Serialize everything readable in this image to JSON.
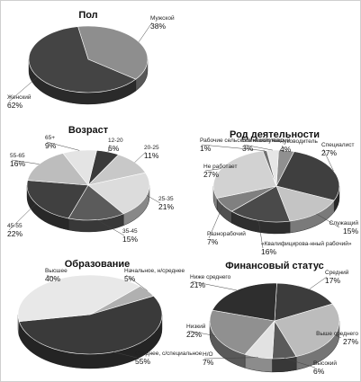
{
  "chart_data": [
    {
      "type": "pie",
      "title": "Пол",
      "slices": [
        {
          "label": "Мужской",
          "pct_text": "38%",
          "value": 38,
          "color": "#8e8e8e"
        },
        {
          "label": "Женский",
          "pct_text": "62%",
          "value": 62,
          "color": "#444444"
        }
      ]
    },
    {
      "type": "pie",
      "title": "Возраст",
      "slices": [
        {
          "label": "12-20",
          "pct_text": "6%",
          "value": 6,
          "color": "#3a3a3a"
        },
        {
          "label": "20-25",
          "pct_text": "11%",
          "value": 11,
          "color": "#c8c8c8"
        },
        {
          "label": "25-35",
          "pct_text": "21%",
          "value": 21,
          "color": "#dcdcdc"
        },
        {
          "label": "35-45",
          "pct_text": "15%",
          "value": 15,
          "color": "#5b5b5b"
        },
        {
          "label": "45-55",
          "pct_text": "22%",
          "value": 22,
          "color": "#404040"
        },
        {
          "label": "55-65",
          "pct_text": "16%",
          "value": 16,
          "color": "#bdbdbd"
        },
        {
          "label": "65+",
          "pct_text": "9%",
          "value": 9,
          "color": "#e4e4e4"
        }
      ]
    },
    {
      "type": "pie",
      "title": "Род деятельности",
      "slices": [
        {
          "label": "Руководитель",
          "pct_text": "4%",
          "value": 4,
          "color": "#909090"
        },
        {
          "label": "Специалист",
          "pct_text": "27%",
          "value": 27,
          "color": "#3f3f3f"
        },
        {
          "label": "Служащий",
          "pct_text": "15%",
          "value": 15,
          "color": "#c4c4c4"
        },
        {
          "label": "«Квалифицирова-нный рабочий»",
          "pct_text": "16%",
          "value": 16,
          "color": "#4a4a4a"
        },
        {
          "label": "Разнорабочий",
          "pct_text": "7%",
          "value": 7,
          "color": "#808080"
        },
        {
          "label": "Не работает",
          "pct_text": "27%",
          "value": 27,
          "color": "#d2d2d2"
        },
        {
          "label": "Рабочие сельского хозяйства",
          "pct_text": "1%",
          "value": 1,
          "color": "#707070"
        },
        {
          "label": "Военнослужащий",
          "pct_text": "3%",
          "value": 3,
          "color": "#e6e6e6"
        }
      ]
    },
    {
      "type": "pie",
      "title": "Образование",
      "slices": [
        {
          "label": "Начальное, н/среднее",
          "pct_text": "5%",
          "value": 5,
          "color": "#b0b0b0"
        },
        {
          "label": "Среднее, с/специальное",
          "pct_text": "55%",
          "value": 55,
          "color": "#3a3a3a"
        },
        {
          "label": "Высшее",
          "pct_text": "40%",
          "value": 40,
          "color": "#e8e8e8"
        }
      ]
    },
    {
      "type": "pie",
      "title": "Финансовый статус",
      "slices": [
        {
          "label": "Средний",
          "pct_text": "17%",
          "value": 17,
          "color": "#3c3c3c"
        },
        {
          "label": "Выше среднего",
          "pct_text": "27%",
          "value": 27,
          "color": "#bcbcbc"
        },
        {
          "label": "Высокий",
          "pct_text": "6%",
          "value": 6,
          "color": "#5a5a5a"
        },
        {
          "label": "Н/О",
          "pct_text": "7%",
          "value": 7,
          "color": "#e2e2e2"
        },
        {
          "label": "Низкий",
          "pct_text": "22%",
          "value": 22,
          "color": "#909090"
        },
        {
          "label": "Ниже среднего",
          "pct_text": "21%",
          "value": 21,
          "color": "#2e2e2e"
        }
      ]
    }
  ]
}
